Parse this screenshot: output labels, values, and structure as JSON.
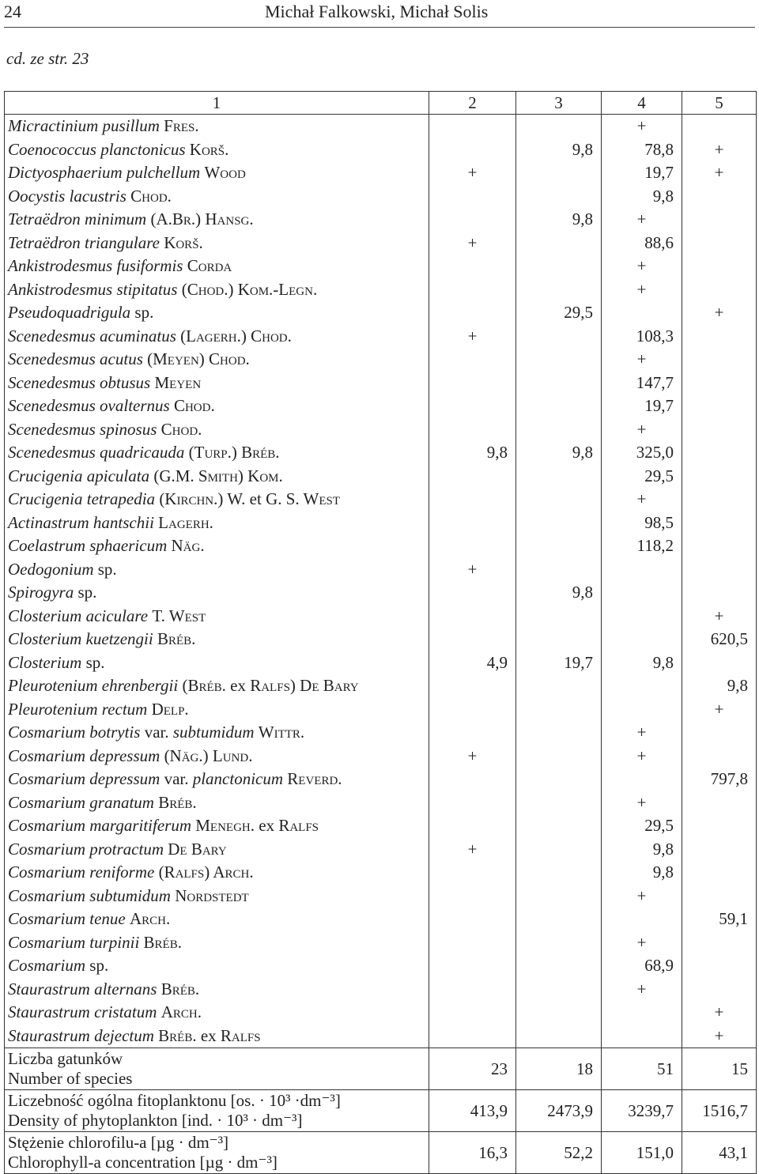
{
  "header": {
    "page": "24",
    "authors": "Michał Falkowski, Michał Solis"
  },
  "continuation": "cd. ze str. 23",
  "table": {
    "columns": [
      "1",
      "2",
      "3",
      "4",
      "5"
    ],
    "rows": [
      {
        "name": [
          {
            "text": "Micractinium pusillum",
            "style": "italic"
          },
          {
            "text": "Fres.",
            "style": "small-caps"
          }
        ],
        "values": [
          null,
          null,
          "+",
          null
        ]
      },
      {
        "name": [
          {
            "text": "Coenococcus planctonicus",
            "style": "italic"
          },
          {
            "text": "Korš.",
            "style": "small-caps"
          }
        ],
        "values": [
          null,
          "9,8",
          "78,8",
          "+"
        ]
      },
      {
        "name": [
          {
            "text": "Dictyosphaerium pulchellum",
            "style": "italic"
          },
          {
            "text": "Wood",
            "style": "small-caps"
          }
        ],
        "values": [
          "+",
          null,
          "19,7",
          "+"
        ]
      },
      {
        "name": [
          {
            "text": "Oocystis lacustris",
            "style": "italic"
          },
          {
            "text": "Chod.",
            "style": "small-caps"
          }
        ],
        "values": [
          null,
          null,
          "9,8",
          null
        ]
      },
      {
        "name": [
          {
            "text": "Tetraëdron minimum",
            "style": "italic"
          },
          {
            "text": "(A.Br.) Hansg.",
            "style": "small-caps"
          }
        ],
        "values": [
          null,
          "9,8",
          "+",
          null
        ]
      },
      {
        "name": [
          {
            "text": "Tetraëdron triangulare",
            "style": "italic"
          },
          {
            "text": "Korš.",
            "style": "small-caps"
          }
        ],
        "values": [
          "+",
          null,
          "88,6",
          null
        ]
      },
      {
        "name": [
          {
            "text": "Ankistrodesmus fusiformis",
            "style": "italic"
          },
          {
            "text": "Corda",
            "style": "small-caps"
          }
        ],
        "values": [
          null,
          null,
          "+",
          null
        ]
      },
      {
        "name": [
          {
            "text": "Ankistrodesmus stipitatus",
            "style": "italic"
          },
          {
            "text": "(Chod.) Kom.-Legn.",
            "style": "small-caps"
          }
        ],
        "values": [
          null,
          null,
          "+",
          null
        ]
      },
      {
        "name": [
          {
            "text": "Pseudoquadrigula",
            "style": "italic"
          },
          {
            "text": "sp.",
            "style": "roman"
          }
        ],
        "values": [
          null,
          "29,5",
          null,
          "+"
        ]
      },
      {
        "name": [
          {
            "text": "Scenedesmus acuminatus",
            "style": "italic"
          },
          {
            "text": "(Lagerh.) Chod.",
            "style": "small-caps"
          }
        ],
        "values": [
          "+",
          null,
          "108,3",
          null
        ]
      },
      {
        "name": [
          {
            "text": "Scenedesmus acutus",
            "style": "italic"
          },
          {
            "text": "(Meyen) Chod.",
            "style": "small-caps"
          }
        ],
        "values": [
          null,
          null,
          "+",
          null
        ]
      },
      {
        "name": [
          {
            "text": "Scenedesmus obtusus",
            "style": "italic"
          },
          {
            "text": "Meyen",
            "style": "small-caps"
          }
        ],
        "values": [
          null,
          null,
          "147,7",
          null
        ]
      },
      {
        "name": [
          {
            "text": "Scenedesmus ovalternus",
            "style": "italic"
          },
          {
            "text": "Chod.",
            "style": "small-caps"
          }
        ],
        "values": [
          null,
          null,
          "19,7",
          null
        ]
      },
      {
        "name": [
          {
            "text": "Scenedesmus spinosus",
            "style": "italic"
          },
          {
            "text": "Chod.",
            "style": "small-caps"
          }
        ],
        "values": [
          null,
          null,
          "+",
          null
        ]
      },
      {
        "name": [
          {
            "text": "Scenedesmus quadricauda",
            "style": "italic"
          },
          {
            "text": "(Turp.) Bréb.",
            "style": "small-caps"
          }
        ],
        "values": [
          "9,8",
          "9,8",
          "325,0",
          null
        ]
      },
      {
        "name": [
          {
            "text": "Crucigenia apiculata",
            "style": "italic"
          },
          {
            "text": "(G.M. Smith) Kom.",
            "style": "small-caps"
          }
        ],
        "values": [
          null,
          null,
          "29,5",
          null
        ]
      },
      {
        "name": [
          {
            "text": "Crucigenia tetrapedia",
            "style": "italic"
          },
          {
            "text": "(Kirchn.) W.",
            "style": "small-caps"
          },
          {
            "text": "et",
            "style": "roman"
          },
          {
            "text": "G. S. West",
            "style": "small-caps"
          }
        ],
        "values": [
          null,
          null,
          "+",
          null
        ]
      },
      {
        "name": [
          {
            "text": "Actinastrum hantschii",
            "style": "italic"
          },
          {
            "text": "Lagerh.",
            "style": "small-caps"
          }
        ],
        "values": [
          null,
          null,
          "98,5",
          null
        ]
      },
      {
        "name": [
          {
            "text": "Coelastrum sphaericum",
            "style": "italic"
          },
          {
            "text": "Näg.",
            "style": "small-caps"
          }
        ],
        "values": [
          null,
          null,
          "118,2",
          null
        ]
      },
      {
        "name": [
          {
            "text": "Oedogonium",
            "style": "italic"
          },
          {
            "text": "sp.",
            "style": "roman"
          }
        ],
        "values": [
          "+",
          null,
          null,
          null
        ]
      },
      {
        "name": [
          {
            "text": "Spirogyra",
            "style": "italic"
          },
          {
            "text": "sp.",
            "style": "roman"
          }
        ],
        "values": [
          null,
          "9,8",
          null,
          null
        ]
      },
      {
        "name": [
          {
            "text": "Closterium aciculare",
            "style": "italic"
          },
          {
            "text": "T. West",
            "style": "small-caps"
          }
        ],
        "values": [
          null,
          null,
          null,
          "+"
        ]
      },
      {
        "name": [
          {
            "text": "Closterium kuetzengii",
            "style": "italic"
          },
          {
            "text": "Bréb.",
            "style": "small-caps"
          }
        ],
        "values": [
          null,
          null,
          null,
          "620,5"
        ]
      },
      {
        "name": [
          {
            "text": "Closterium",
            "style": "italic"
          },
          {
            "text": "sp.",
            "style": "roman"
          }
        ],
        "values": [
          "4,9",
          "19,7",
          "9,8",
          null
        ]
      },
      {
        "name": [
          {
            "text": "Pleurotenium ehrenbergii",
            "style": "italic"
          },
          {
            "text": "(Bréb.",
            "style": "small-caps"
          },
          {
            "text": "ex",
            "style": "roman"
          },
          {
            "text": "Ralfs) De Bary",
            "style": "small-caps"
          }
        ],
        "values": [
          null,
          null,
          null,
          "9,8"
        ]
      },
      {
        "name": [
          {
            "text": "Pleurotenium rectum",
            "style": "italic"
          },
          {
            "text": "Delp.",
            "style": "small-caps"
          }
        ],
        "values": [
          null,
          null,
          null,
          "+"
        ]
      },
      {
        "name": [
          {
            "text": "Cosmarium botrytis",
            "style": "italic"
          },
          {
            "text": "var.",
            "style": "roman"
          },
          {
            "text": "subtumidum",
            "style": "italic"
          },
          {
            "text": "Wittr.",
            "style": "small-caps"
          }
        ],
        "values": [
          null,
          null,
          "+",
          null
        ]
      },
      {
        "name": [
          {
            "text": "Cosmarium depressum",
            "style": "italic"
          },
          {
            "text": "(Näg.) Lund.",
            "style": "small-caps"
          }
        ],
        "values": [
          "+",
          null,
          "+",
          null
        ]
      },
      {
        "name": [
          {
            "text": "Cosmarium depressum",
            "style": "italic"
          },
          {
            "text": "var.",
            "style": "roman"
          },
          {
            "text": "planctonicum",
            "style": "italic"
          },
          {
            "text": "Reverd.",
            "style": "small-caps"
          }
        ],
        "values": [
          null,
          null,
          null,
          "797,8"
        ]
      },
      {
        "name": [
          {
            "text": "Cosmarium granatum",
            "style": "italic"
          },
          {
            "text": "Bréb.",
            "style": "small-caps"
          }
        ],
        "values": [
          null,
          null,
          "+",
          null
        ]
      },
      {
        "name": [
          {
            "text": "Cosmarium margaritiferum",
            "style": "italic"
          },
          {
            "text": "Menegh.",
            "style": "small-caps"
          },
          {
            "text": "ex",
            "style": "roman"
          },
          {
            "text": "Ralfs",
            "style": "small-caps"
          }
        ],
        "values": [
          null,
          null,
          "29,5",
          null
        ]
      },
      {
        "name": [
          {
            "text": "Cosmarium protractum",
            "style": "italic"
          },
          {
            "text": "De Bary",
            "style": "small-caps"
          }
        ],
        "values": [
          "+",
          null,
          "9,8",
          null
        ]
      },
      {
        "name": [
          {
            "text": "Cosmarium reniforme",
            "style": "italic"
          },
          {
            "text": "(Ralfs) Arch.",
            "style": "small-caps"
          }
        ],
        "values": [
          null,
          null,
          "9,8",
          null
        ]
      },
      {
        "name": [
          {
            "text": "Cosmarium subtumidum",
            "style": "italic"
          },
          {
            "text": "Nordstedt",
            "style": "small-caps"
          }
        ],
        "values": [
          null,
          null,
          "+",
          null
        ]
      },
      {
        "name": [
          {
            "text": "Cosmarium tenue",
            "style": "italic"
          },
          {
            "text": "Arch.",
            "style": "small-caps"
          }
        ],
        "values": [
          null,
          null,
          null,
          "59,1"
        ]
      },
      {
        "name": [
          {
            "text": "Cosmarium turpinii",
            "style": "italic"
          },
          {
            "text": "Bréb.",
            "style": "small-caps"
          }
        ],
        "values": [
          null,
          null,
          "+",
          null
        ]
      },
      {
        "name": [
          {
            "text": "Cosmarium",
            "style": "italic"
          },
          {
            "text": "sp.",
            "style": "roman"
          }
        ],
        "values": [
          null,
          null,
          "68,9",
          null
        ]
      },
      {
        "name": [
          {
            "text": "Staurastrum alternans",
            "style": "italic"
          },
          {
            "text": "Bréb.",
            "style": "small-caps"
          }
        ],
        "values": [
          null,
          null,
          "+",
          null
        ]
      },
      {
        "name": [
          {
            "text": "Staurastrum cristatum",
            "style": "italic"
          },
          {
            "text": "Arch.",
            "style": "small-caps"
          }
        ],
        "values": [
          null,
          null,
          null,
          "+"
        ]
      },
      {
        "name": [
          {
            "text": "Staurastrum dejectum",
            "style": "italic"
          },
          {
            "text": "Bréb.",
            "style": "small-caps"
          },
          {
            "text": "ex",
            "style": "roman"
          },
          {
            "text": "Ralfs",
            "style": "small-caps"
          }
        ],
        "values": [
          null,
          null,
          null,
          "+"
        ]
      }
    ],
    "summary": [
      {
        "label": [
          "Liczba gatunków",
          "Number of species"
        ],
        "values": [
          "23",
          "18",
          "51",
          "15"
        ]
      },
      {
        "label": [
          "Liczebność ogólna fitoplanktonu [os. · 10³ ·dm⁻³]",
          "Density of phytoplankton [ind. · 10³ · dm⁻³]"
        ],
        "values": [
          "413,9",
          "2473,9",
          "3239,7",
          "1516,7"
        ]
      },
      {
        "label": [
          "Stężenie chlorofilu-a [µg · dm⁻³]",
          "Chlorophyll-a concentration [µg · dm⁻³]"
        ],
        "values": [
          "16,3",
          "52,2",
          "151,0",
          "43,1"
        ]
      }
    ]
  }
}
